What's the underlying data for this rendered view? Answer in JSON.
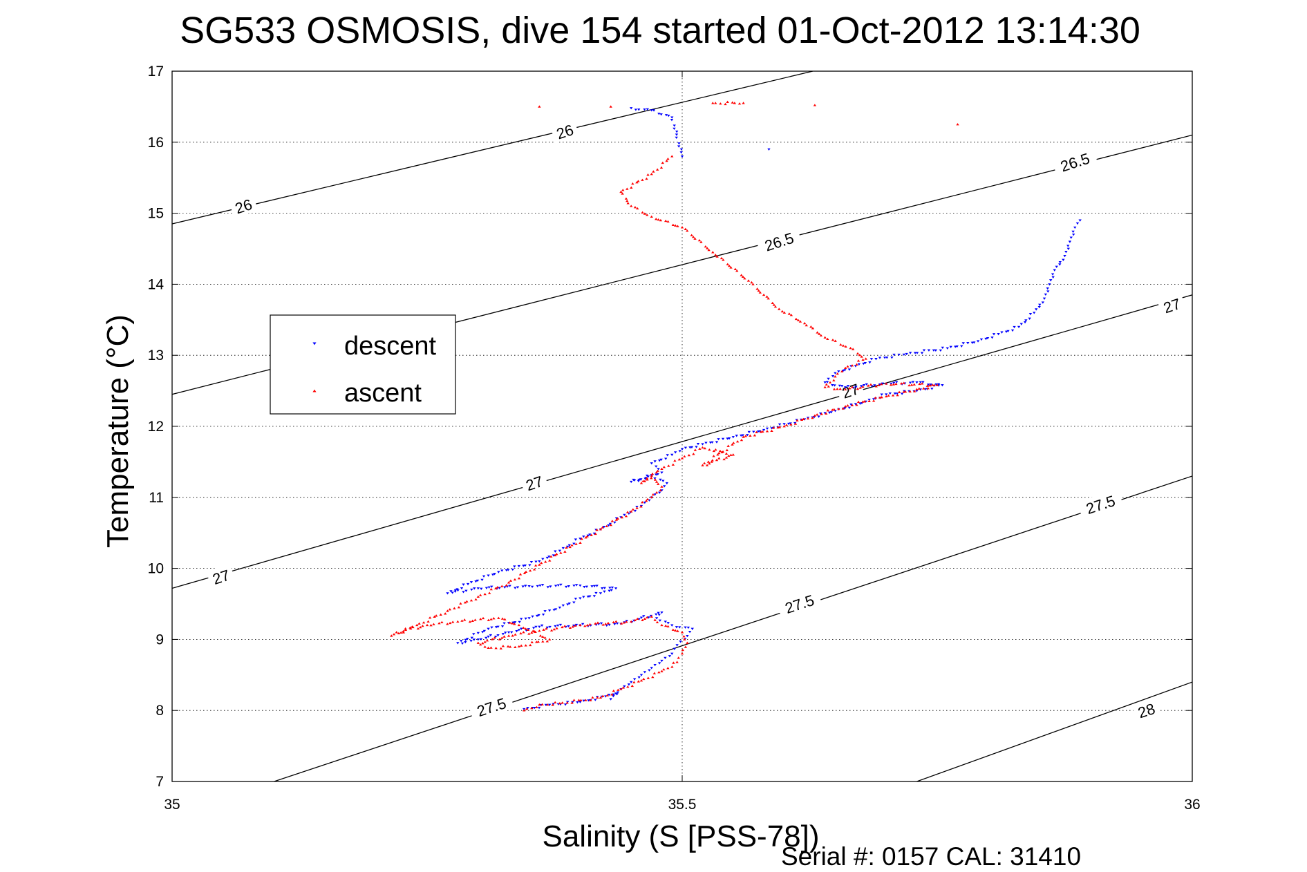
{
  "chart_data": {
    "type": "scatter",
    "title": "SG533 OSMOSIS, dive 154 started 01-Oct-2012 13:14:30",
    "xlabel": "Salinity (S [PSS-78])",
    "ylabel": "Temperature (°C)",
    "xlim": [
      35,
      36
    ],
    "ylim": [
      7,
      17
    ],
    "x_ticks": [
      "35",
      "35.5",
      "36"
    ],
    "y_ticks": [
      "7",
      "8",
      "9",
      "10",
      "11",
      "12",
      "13",
      "14",
      "15",
      "16",
      "17"
    ],
    "grid": "dotted",
    "legend_position": "left",
    "footer": "Serial #: 0157  CAL: 31410",
    "colors": {
      "descent": "#0000ff",
      "ascent": "#ff0000",
      "contour": "#000000"
    },
    "density_contours": [
      {
        "label": "26",
        "points": [
          [
            35,
            14.85
          ],
          [
            35.628,
            17
          ]
        ]
      },
      {
        "label": "26.5",
        "points": [
          [
            35,
            12.45
          ],
          [
            36,
            16.1
          ]
        ]
      },
      {
        "label": "27",
        "points": [
          [
            35,
            9.72
          ],
          [
            36,
            13.85
          ]
        ]
      },
      {
        "label": "27.5",
        "points": [
          [
            35.1,
            7
          ],
          [
            36,
            11.3
          ]
        ]
      },
      {
        "label": "28",
        "points": [
          [
            35.73,
            7
          ],
          [
            36,
            8.4
          ]
        ]
      }
    ],
    "contour_labels": [
      {
        "text": "26",
        "x": 35.07,
        "y": 15.1
      },
      {
        "text": "26",
        "x": 35.385,
        "y": 16.15
      },
      {
        "text": "26.5",
        "x": 35.885,
        "y": 15.72
      },
      {
        "text": "26.5",
        "x": 35.595,
        "y": 14.6
      },
      {
        "text": "27",
        "x": 35.98,
        "y": 13.7
      },
      {
        "text": "27",
        "x": 35.665,
        "y": 12.5
      },
      {
        "text": "27",
        "x": 35.355,
        "y": 11.2
      },
      {
        "text": "27",
        "x": 35.048,
        "y": 9.88
      },
      {
        "text": "27.5",
        "x": 35.91,
        "y": 10.9
      },
      {
        "text": "27.5",
        "x": 35.615,
        "y": 9.5
      },
      {
        "text": "27.5",
        "x": 35.313,
        "y": 8.05
      },
      {
        "text": "28",
        "x": 35.955,
        "y": 8.0
      }
    ],
    "series": [
      {
        "name": "descent",
        "marker": "triangle-down",
        "path": [
          [
            35.345,
            8.02
          ],
          [
            35.37,
            8.08
          ],
          [
            35.4,
            8.12
          ],
          [
            35.425,
            8.2
          ],
          [
            35.435,
            8.24
          ],
          [
            35.43,
            8.16
          ],
          [
            35.44,
            8.3
          ],
          [
            35.45,
            8.4
          ],
          [
            35.46,
            8.5
          ],
          [
            35.47,
            8.6
          ],
          [
            35.48,
            8.7
          ],
          [
            35.49,
            8.8
          ],
          [
            35.495,
            8.92
          ],
          [
            35.505,
            9.05
          ],
          [
            35.51,
            9.15
          ],
          [
            35.49,
            9.2
          ],
          [
            35.475,
            9.3
          ],
          [
            35.48,
            9.38
          ],
          [
            35.44,
            9.22
          ],
          [
            35.4,
            9.2
          ],
          [
            35.36,
            9.18
          ],
          [
            35.33,
            9.1
          ],
          [
            35.3,
            9.0
          ],
          [
            35.28,
            8.95
          ],
          [
            35.31,
            9.15
          ],
          [
            35.35,
            9.3
          ],
          [
            35.38,
            9.45
          ],
          [
            35.4,
            9.58
          ],
          [
            35.42,
            9.65
          ],
          [
            35.435,
            9.72
          ],
          [
            35.4,
            9.76
          ],
          [
            35.35,
            9.75
          ],
          [
            35.3,
            9.72
          ],
          [
            35.27,
            9.65
          ],
          [
            35.29,
            9.78
          ],
          [
            35.32,
            9.95
          ],
          [
            35.36,
            10.1
          ],
          [
            35.38,
            10.25
          ],
          [
            35.4,
            10.42
          ],
          [
            35.42,
            10.55
          ],
          [
            35.44,
            10.72
          ],
          [
            35.46,
            10.88
          ],
          [
            35.47,
            11.0
          ],
          [
            35.48,
            11.1
          ],
          [
            35.485,
            11.2
          ],
          [
            35.47,
            11.3
          ],
          [
            35.45,
            11.22
          ],
          [
            35.48,
            11.35
          ],
          [
            35.47,
            11.48
          ],
          [
            35.49,
            11.6
          ],
          [
            35.5,
            11.68
          ],
          [
            35.52,
            11.75
          ],
          [
            35.55,
            11.85
          ],
          [
            35.58,
            11.95
          ],
          [
            35.62,
            12.1
          ],
          [
            35.65,
            12.22
          ],
          [
            35.68,
            12.35
          ],
          [
            35.7,
            12.45
          ],
          [
            35.73,
            12.5
          ],
          [
            35.755,
            12.58
          ],
          [
            35.73,
            12.62
          ],
          [
            35.7,
            12.6
          ],
          [
            35.66,
            12.55
          ],
          [
            35.64,
            12.62
          ],
          [
            35.65,
            12.75
          ],
          [
            35.67,
            12.85
          ],
          [
            35.69,
            12.95
          ],
          [
            35.72,
            13.02
          ],
          [
            35.76,
            13.1
          ],
          [
            35.79,
            13.2
          ],
          [
            35.81,
            13.3
          ],
          [
            35.83,
            13.4
          ],
          [
            35.845,
            13.6
          ],
          [
            35.855,
            13.8
          ],
          [
            35.86,
            14.0
          ],
          [
            35.865,
            14.2
          ],
          [
            35.875,
            14.4
          ],
          [
            35.88,
            14.6
          ],
          [
            35.885,
            14.8
          ],
          [
            35.89,
            14.9
          ],
          [
            35.585,
            15.9
          ],
          [
            35.5,
            15.8
          ],
          [
            35.49,
            16.35
          ],
          [
            35.47,
            16.45
          ],
          [
            35.45,
            16.48
          ]
        ]
      },
      {
        "name": "ascent",
        "marker": "triangle-up",
        "path": [
          [
            35.345,
            8.0
          ],
          [
            35.36,
            8.08
          ],
          [
            35.38,
            8.1
          ],
          [
            35.42,
            8.18
          ],
          [
            35.44,
            8.3
          ],
          [
            35.46,
            8.42
          ],
          [
            35.48,
            8.55
          ],
          [
            35.495,
            8.68
          ],
          [
            35.5,
            8.8
          ],
          [
            35.505,
            8.95
          ],
          [
            35.5,
            9.1
          ],
          [
            35.48,
            9.2
          ],
          [
            35.47,
            9.32
          ],
          [
            35.45,
            9.25
          ],
          [
            35.4,
            9.2
          ],
          [
            35.36,
            9.12
          ],
          [
            35.33,
            9.05
          ],
          [
            35.3,
            8.95
          ],
          [
            35.31,
            8.88
          ],
          [
            35.34,
            8.9
          ],
          [
            35.37,
            9.0
          ],
          [
            35.34,
            9.2
          ],
          [
            35.32,
            9.3
          ],
          [
            35.28,
            9.25
          ],
          [
            35.25,
            9.2
          ],
          [
            35.22,
            9.1
          ],
          [
            35.215,
            9.05
          ],
          [
            35.24,
            9.2
          ],
          [
            35.27,
            9.4
          ],
          [
            35.3,
            9.6
          ],
          [
            35.33,
            9.8
          ],
          [
            35.36,
            10.05
          ],
          [
            35.39,
            10.3
          ],
          [
            35.42,
            10.55
          ],
          [
            35.45,
            10.8
          ],
          [
            35.47,
            11.0
          ],
          [
            35.48,
            11.15
          ],
          [
            35.47,
            11.3
          ],
          [
            35.46,
            11.2
          ],
          [
            35.48,
            11.4
          ],
          [
            35.5,
            11.55
          ],
          [
            35.52,
            11.7
          ],
          [
            35.55,
            11.6
          ],
          [
            35.52,
            11.45
          ],
          [
            35.56,
            11.85
          ],
          [
            35.6,
            12.0
          ],
          [
            35.63,
            12.15
          ],
          [
            35.66,
            12.28
          ],
          [
            35.7,
            12.42
          ],
          [
            35.73,
            12.52
          ],
          [
            35.75,
            12.58
          ],
          [
            35.7,
            12.6
          ],
          [
            35.66,
            12.52
          ],
          [
            35.64,
            12.55
          ],
          [
            35.65,
            12.7
          ],
          [
            35.66,
            12.82
          ],
          [
            35.68,
            12.95
          ],
          [
            35.665,
            13.1
          ],
          [
            35.64,
            13.25
          ],
          [
            35.62,
            13.45
          ],
          [
            35.595,
            13.65
          ],
          [
            35.58,
            13.85
          ],
          [
            35.565,
            14.05
          ],
          [
            35.53,
            14.45
          ],
          [
            35.5,
            14.8
          ],
          [
            35.47,
            14.95
          ],
          [
            35.45,
            15.1
          ],
          [
            35.44,
            15.3
          ],
          [
            35.47,
            15.55
          ],
          [
            35.49,
            15.8
          ],
          [
            35.43,
            16.5
          ],
          [
            35.36,
            16.5
          ],
          [
            35.53,
            16.55
          ],
          [
            35.56,
            16.55
          ],
          [
            35.63,
            16.52
          ],
          [
            35.77,
            16.25
          ]
        ]
      }
    ]
  }
}
